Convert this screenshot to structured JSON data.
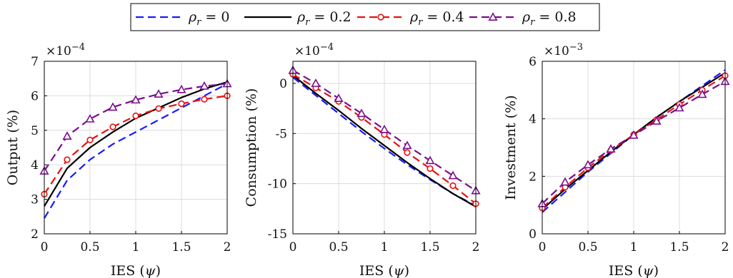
{
  "legend": {
    "items": [
      {
        "label": "ρr = 0",
        "color": "#1a1aff",
        "dash": "dash",
        "marker": "none"
      },
      {
        "label": "ρr = 0.2",
        "color": "#000000",
        "dash": "solid",
        "marker": "none"
      },
      {
        "label": "ρr = 0.4",
        "color": "#e81010",
        "dash": "dash",
        "marker": "circle"
      },
      {
        "label": "ρr = 0.8",
        "color": "#7a0f8c",
        "dash": "dash",
        "marker": "triangle"
      }
    ]
  },
  "chart_data": [
    {
      "type": "line",
      "xlabel": "IES (ψ)",
      "ylabel": "Output (%)",
      "multiplier": "×10−4",
      "xlim": [
        0,
        2
      ],
      "ylim": [
        2,
        7
      ],
      "xticks": [
        0,
        0.5,
        1,
        1.5,
        2
      ],
      "xtick_labels": [
        "0",
        "0.5",
        "1",
        "1.5",
        "2"
      ],
      "yticks": [
        2,
        3,
        4,
        5,
        6,
        7
      ],
      "ytick_labels": [
        "2",
        "3",
        "4",
        "5",
        "6",
        "7"
      ],
      "grid": true,
      "x": [
        0,
        0.25,
        0.5,
        0.75,
        1,
        1.25,
        1.5,
        1.75,
        2
      ],
      "series": [
        {
          "name": "ρr = 0",
          "values": [
            2.45,
            3.55,
            4.15,
            4.6,
            4.95,
            5.3,
            5.65,
            6.0,
            6.35
          ]
        },
        {
          "name": "ρr = 0.2",
          "values": [
            2.8,
            3.9,
            4.5,
            4.95,
            5.35,
            5.65,
            5.95,
            6.2,
            6.4
          ]
        },
        {
          "name": "ρr = 0.4",
          "values": [
            3.15,
            4.15,
            4.72,
            5.1,
            5.42,
            5.63,
            5.77,
            5.9,
            6.0
          ]
        },
        {
          "name": "ρr = 0.8",
          "values": [
            3.82,
            4.83,
            5.33,
            5.67,
            5.88,
            6.05,
            6.18,
            6.28,
            6.35
          ]
        }
      ]
    },
    {
      "type": "line",
      "xlabel": "IES (ψ)",
      "ylabel": "Consumption (%)",
      "multiplier": "×10−4",
      "xlim": [
        0,
        2
      ],
      "ylim": [
        -15,
        2.2
      ],
      "xticks": [
        0,
        0.5,
        1,
        1.5,
        2
      ],
      "xtick_labels": [
        "0",
        "0.5",
        "1",
        "1.5",
        "2"
      ],
      "yticks": [
        -15,
        -10,
        -5,
        0
      ],
      "ytick_labels": [
        "-15",
        "-10",
        "-5",
        "0"
      ],
      "grid": true,
      "x": [
        0,
        0.25,
        0.5,
        0.75,
        1,
        1.25,
        1.5,
        1.75,
        2
      ],
      "series": [
        {
          "name": "ρr = 0",
          "values": [
            0.6,
            -1.2,
            -3.0,
            -4.8,
            -6.5,
            -8.1,
            -9.6,
            -11.0,
            -12.2
          ]
        },
        {
          "name": "ρr = 0.2",
          "values": [
            0.8,
            -1.0,
            -2.7,
            -4.5,
            -6.2,
            -7.9,
            -9.5,
            -11.0,
            -12.3
          ]
        },
        {
          "name": "ρr = 0.4",
          "values": [
            0.9,
            -0.45,
            -1.8,
            -3.4,
            -5.1,
            -6.9,
            -8.5,
            -10.2,
            -12.0
          ]
        },
        {
          "name": "ρr = 0.8",
          "values": [
            1.3,
            0.0,
            -1.5,
            -3.0,
            -4.6,
            -6.2,
            -7.7,
            -9.2,
            -10.7
          ]
        }
      ]
    },
    {
      "type": "line",
      "xlabel": "IES (ψ)",
      "ylabel": "Investment (%)",
      "multiplier": "×10−3",
      "xlim": [
        0,
        2
      ],
      "ylim": [
        0,
        6
      ],
      "xticks": [
        0,
        0.5,
        1,
        1.5,
        2
      ],
      "xtick_labels": [
        "0",
        "0.5",
        "1",
        "1.5",
        "2"
      ],
      "yticks": [
        0,
        2,
        4,
        6
      ],
      "ytick_labels": [
        "0",
        "2",
        "4",
        "6"
      ],
      "grid": true,
      "x": [
        0,
        0.25,
        0.5,
        0.75,
        1,
        1.25,
        1.5,
        1.75,
        2
      ],
      "series": [
        {
          "name": "ρr = 0",
          "values": [
            0.75,
            1.45,
            2.15,
            2.8,
            3.45,
            4.05,
            4.6,
            5.15,
            5.7
          ]
        },
        {
          "name": "ρr = 0.2",
          "values": [
            0.85,
            1.55,
            2.2,
            2.85,
            3.45,
            4.05,
            4.6,
            5.1,
            5.6
          ]
        },
        {
          "name": "ρr = 0.4",
          "values": [
            0.9,
            1.62,
            2.3,
            2.9,
            3.45,
            3.97,
            4.5,
            5.0,
            5.5
          ]
        },
        {
          "name": "ρr = 0.8",
          "values": [
            1.05,
            1.8,
            2.4,
            2.95,
            3.43,
            3.92,
            4.38,
            4.85,
            5.3
          ]
        }
      ]
    }
  ]
}
